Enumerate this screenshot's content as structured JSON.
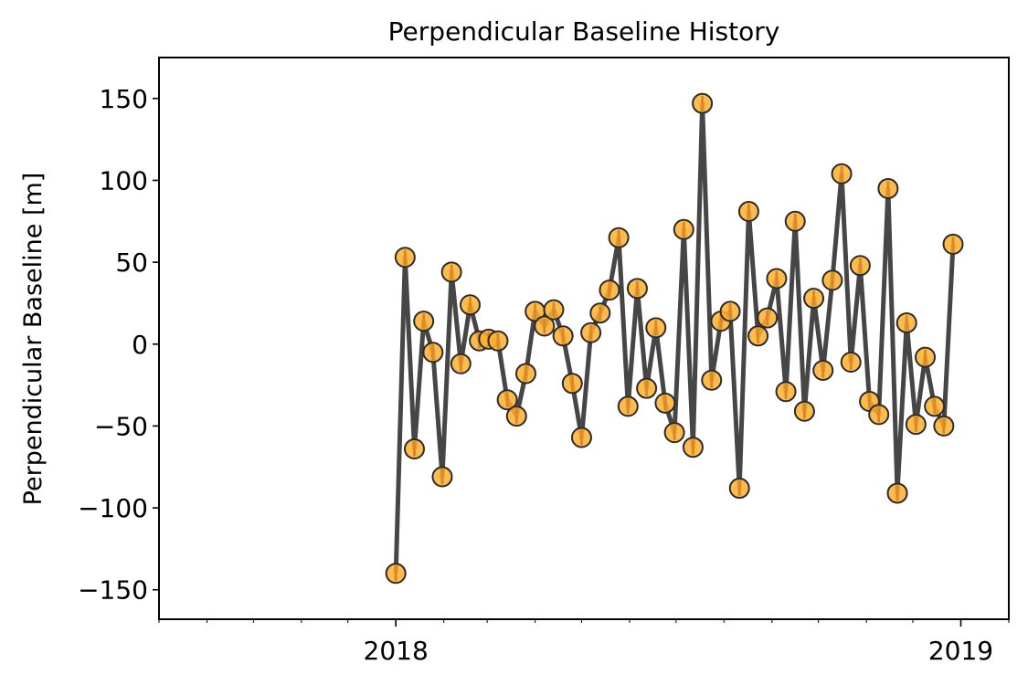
{
  "chart_data": {
    "type": "line",
    "title": "Perpendicular Baseline History",
    "xlabel": "",
    "ylabel": "Perpendicular Baseline [m]",
    "xlim": [
      "2017-08-01",
      "2019-02-01"
    ],
    "ylim": [
      -168,
      175
    ],
    "x_ticks": [
      {
        "date": "2018-01-01",
        "label": "2018"
      },
      {
        "date": "2019-01-01",
        "label": "2019"
      }
    ],
    "y_ticks": [
      {
        "value": 150,
        "label": "150"
      },
      {
        "value": 100,
        "label": "100"
      },
      {
        "value": 50,
        "label": "50"
      },
      {
        "value": 0,
        "label": "0"
      },
      {
        "value": -50,
        "label": "−50"
      },
      {
        "value": -100,
        "label": "−100"
      },
      {
        "value": -150,
        "label": "−150"
      }
    ],
    "grid": false,
    "legend": "none",
    "colors": {
      "line": "#464646",
      "marker_fill": "#ffb02e",
      "marker_edge": "#2b2b2b",
      "stem": "#d9892a"
    },
    "dates": [
      "2018-01-01",
      "2018-01-07",
      "2018-01-13",
      "2018-01-19",
      "2018-01-25",
      "2018-01-31",
      "2018-02-06",
      "2018-02-12",
      "2018-02-18",
      "2018-02-24",
      "2018-03-02",
      "2018-03-08",
      "2018-03-14",
      "2018-03-20",
      "2018-03-26",
      "2018-04-01",
      "2018-04-07",
      "2018-04-13",
      "2018-04-19",
      "2018-04-25",
      "2018-05-01",
      "2018-05-07",
      "2018-05-13",
      "2018-05-19",
      "2018-05-25",
      "2018-05-31",
      "2018-06-06",
      "2018-06-12",
      "2018-06-18",
      "2018-06-24",
      "2018-06-30",
      "2018-07-06",
      "2018-07-12",
      "2018-07-18",
      "2018-07-24",
      "2018-07-30",
      "2018-08-05",
      "2018-08-11",
      "2018-08-17",
      "2018-08-23",
      "2018-08-29",
      "2018-09-04",
      "2018-09-10",
      "2018-09-16",
      "2018-09-22",
      "2018-09-28",
      "2018-10-04",
      "2018-10-10",
      "2018-10-16",
      "2018-10-22",
      "2018-10-28",
      "2018-11-03",
      "2018-11-09",
      "2018-11-15",
      "2018-11-21",
      "2018-11-27",
      "2018-12-03",
      "2018-12-09",
      "2018-12-15",
      "2018-12-21",
      "2018-12-27"
    ],
    "values": [
      -140,
      53,
      -64,
      14,
      -5,
      -81,
      44,
      -12,
      24,
      2,
      3,
      2,
      -34,
      -44,
      -18,
      20,
      11,
      21,
      5,
      -24,
      -57,
      7,
      19,
      33,
      65,
      -38,
      34,
      -27,
      10,
      -36,
      -54,
      70,
      -63,
      147,
      -22,
      14,
      20,
      -88,
      81,
      5,
      16,
      40,
      -29,
      75,
      -41,
      28,
      -16,
      39,
      104,
      -11,
      48,
      -35,
      -43,
      95,
      -91,
      13,
      -49,
      -8,
      -38,
      -50,
      61
    ]
  }
}
